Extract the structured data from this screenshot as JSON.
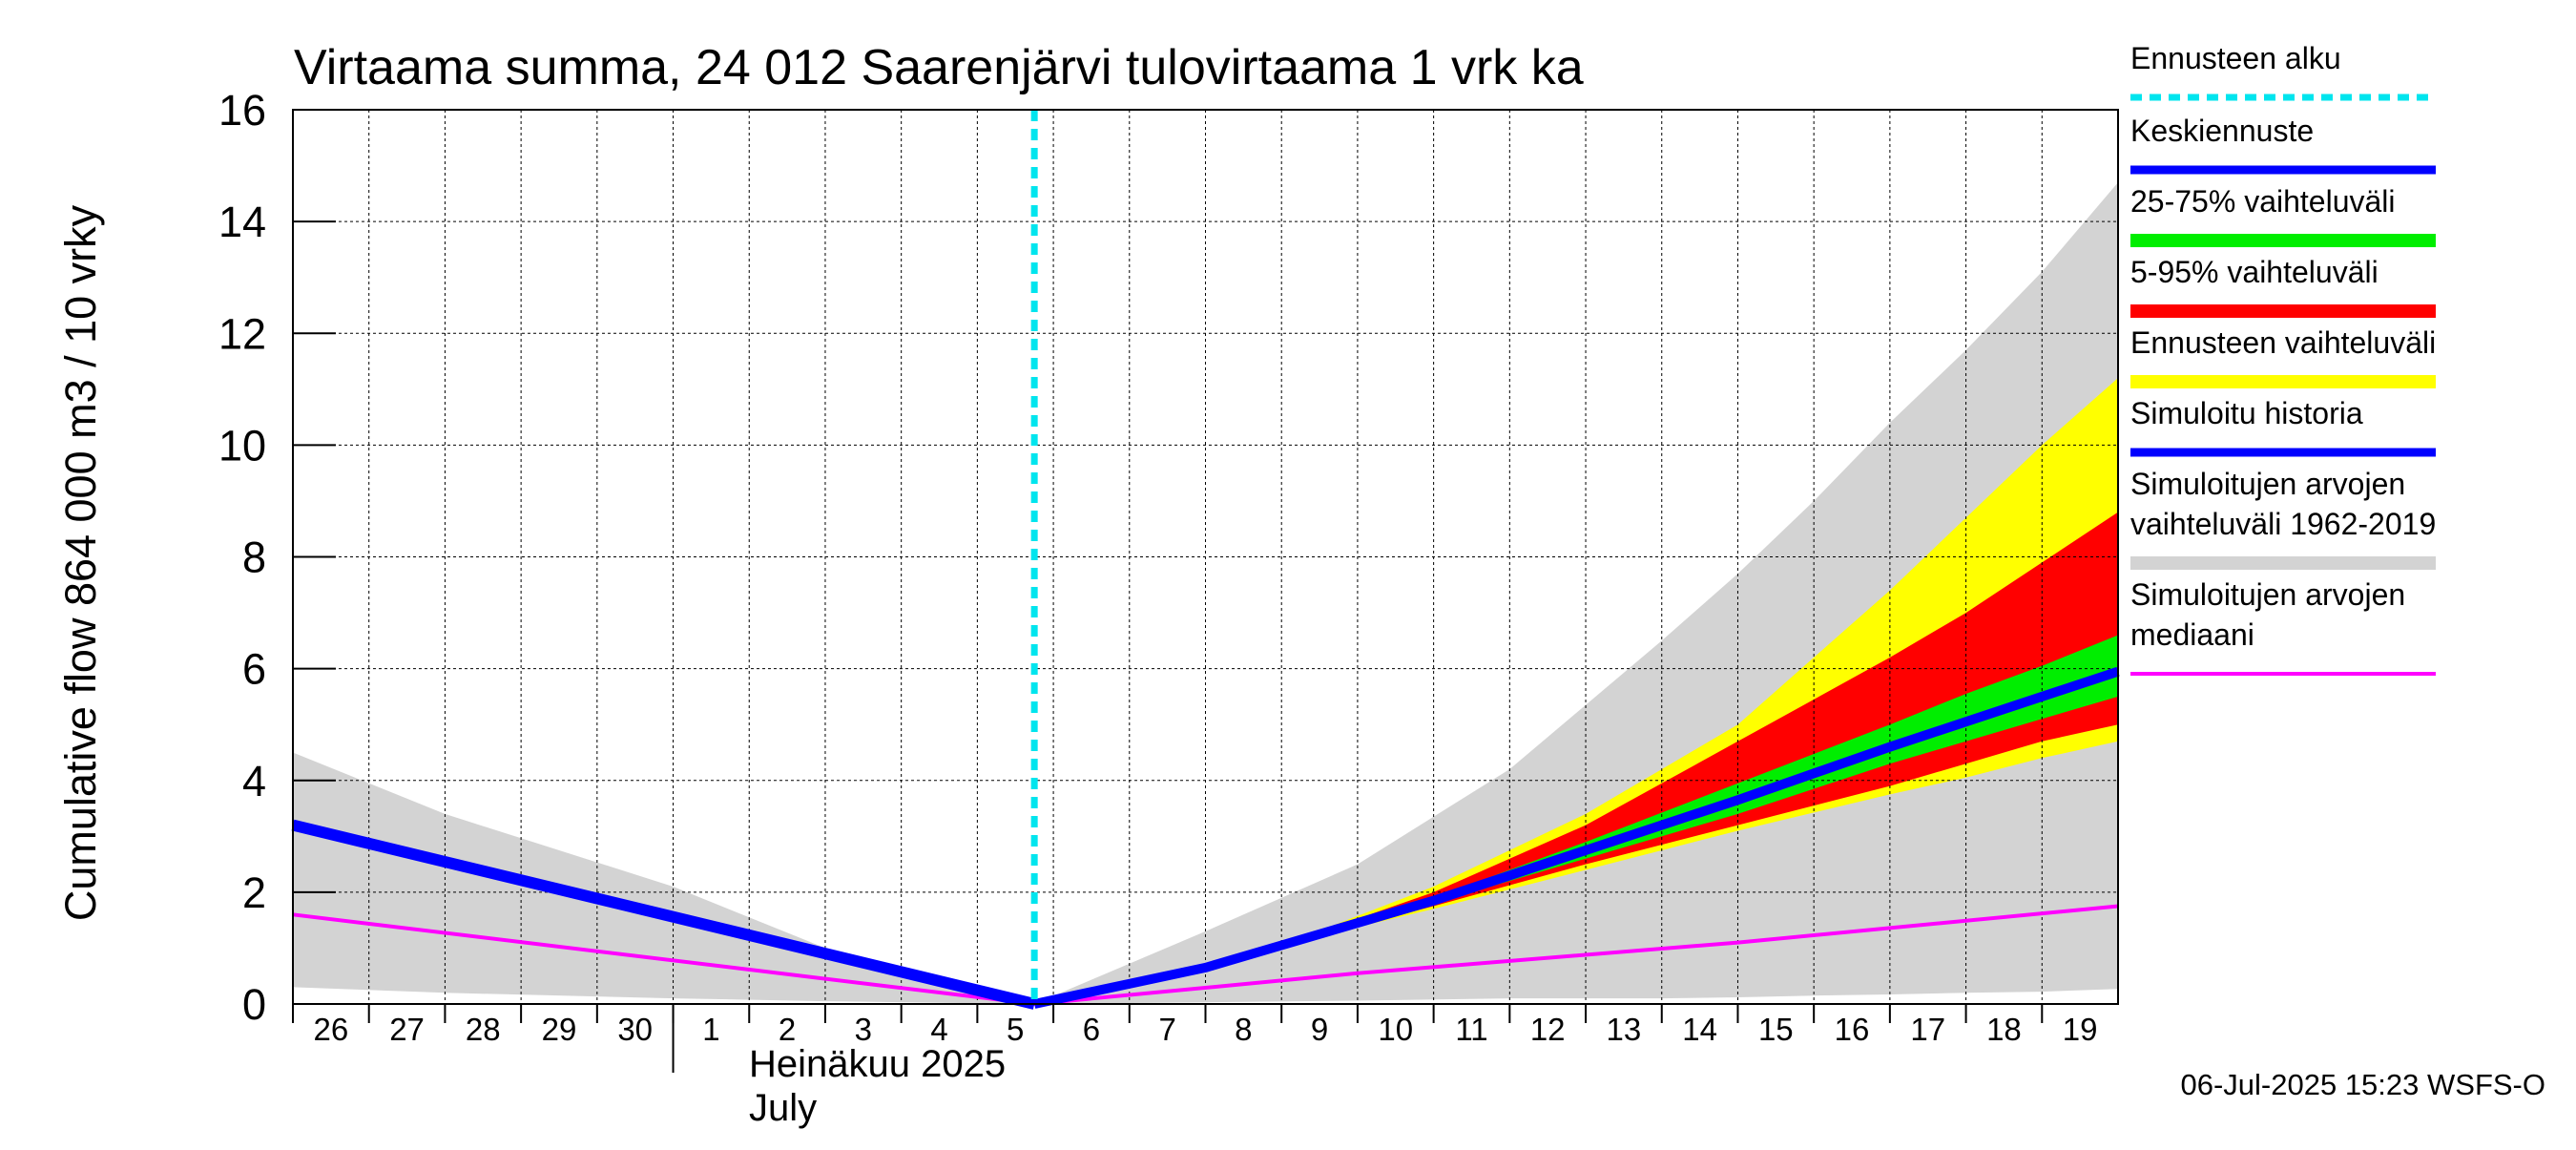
{
  "chart_data": {
    "type": "area",
    "title": "Virtaama summa, 24 012 Saarenjärvi tulovirtaama 1 vrk ka",
    "ylabel": "Cumulative flow    864 000 m3 / 10 vrky",
    "ylim": [
      0,
      16
    ],
    "yticks": [
      0,
      2,
      4,
      6,
      8,
      10,
      12,
      14,
      16
    ],
    "x_days": [
      "26",
      "27",
      "28",
      "29",
      "30",
      "1",
      "2",
      "3",
      "4",
      "5",
      "6",
      "7",
      "8",
      "9",
      "10",
      "11",
      "12",
      "13",
      "14",
      "15",
      "16",
      "17",
      "18",
      "19"
    ],
    "month_label_fi": "Heinäkuu  2025",
    "month_label_en": "July",
    "forecast_start": "2025-07-05 18:00",
    "footer": "06-Jul-2025 15:23 WSFS-O",
    "grid": true,
    "legend_position": "right",
    "legend": [
      {
        "key": "forecast_start",
        "label": "Ennusteen alku",
        "color": "#00e5ee",
        "style": "dashed"
      },
      {
        "key": "mean_forecast",
        "label": "Keskiennuste",
        "color": "#0000ff",
        "style": "line"
      },
      {
        "key": "band_25_75",
        "label": "25-75% vaihteluväli",
        "color": "#00ee00",
        "style": "band"
      },
      {
        "key": "band_5_95",
        "label": "5-95% vaihteluväli",
        "color": "#ff0000",
        "style": "band"
      },
      {
        "key": "forecast_range",
        "label": "Ennusteen vaihteluväli",
        "color": "#ffff00",
        "style": "band"
      },
      {
        "key": "simulated_history",
        "label": "Simuloitu historia",
        "color": "#0000ff",
        "style": "line"
      },
      {
        "key": "historical_range",
        "label": "Simuloitujen arvojen\nvaihteluväli 1962-2019",
        "color": "#d3d3d3",
        "style": "band"
      },
      {
        "key": "historical_median",
        "label": "Simuloitujen arvojen\nmediaani",
        "color": "#ff00ff",
        "style": "line"
      }
    ],
    "series": {
      "historical_range": {
        "x": [
          "2025-06-26",
          "2025-06-28",
          "2025-07-01",
          "2025-07-03",
          "2025-07-05 18:00",
          "2025-07-08",
          "2025-07-10",
          "2025-07-12",
          "2025-07-14",
          "2025-07-15",
          "2025-07-16",
          "2025-07-17",
          "2025-07-18",
          "2025-07-19",
          "2025-07-20"
        ],
        "upper": [
          4.5,
          3.4,
          2.1,
          1.0,
          0.0,
          1.3,
          2.5,
          4.2,
          6.5,
          7.7,
          9.0,
          10.4,
          11.7,
          13.1,
          14.7
        ],
        "lower": [
          0.3,
          0.2,
          0.1,
          0.05,
          0.0,
          0.03,
          0.06,
          0.1,
          0.1,
          0.12,
          0.15,
          0.17,
          0.2,
          0.22,
          0.27
        ]
      },
      "forecast_range": {
        "x": [
          "2025-07-05 18:00",
          "2025-07-08",
          "2025-07-09",
          "2025-07-11",
          "2025-07-13",
          "2025-07-15",
          "2025-07-17",
          "2025-07-18",
          "2025-07-19",
          "2025-07-20"
        ],
        "upper": [
          0.0,
          0.65,
          1.05,
          2.1,
          3.4,
          5.0,
          7.4,
          8.7,
          10.0,
          11.2
        ],
        "lower": [
          0.0,
          0.65,
          1.05,
          1.7,
          2.4,
          3.1,
          3.75,
          4.05,
          4.4,
          4.7
        ]
      },
      "band_5_95": {
        "x": [
          "2025-07-05 18:00",
          "2025-07-08",
          "2025-07-09",
          "2025-07-11",
          "2025-07-13",
          "2025-07-15",
          "2025-07-17",
          "2025-07-18",
          "2025-07-19",
          "2025-07-20"
        ],
        "upper": [
          0.0,
          0.65,
          1.05,
          2.0,
          3.2,
          4.7,
          6.2,
          7.0,
          7.9,
          8.8
        ],
        "lower": [
          0.0,
          0.65,
          1.05,
          1.75,
          2.5,
          3.2,
          3.9,
          4.3,
          4.7,
          5.0
        ]
      },
      "band_25_75": {
        "x": [
          "2025-07-05 18:00",
          "2025-07-08",
          "2025-07-09",
          "2025-07-11",
          "2025-07-13",
          "2025-07-15",
          "2025-07-17",
          "2025-07-18",
          "2025-07-19",
          "2025-07-20"
        ],
        "upper": [
          0.0,
          0.65,
          1.05,
          1.9,
          2.9,
          3.95,
          5.0,
          5.55,
          6.05,
          6.6
        ],
        "lower": [
          0.0,
          0.65,
          1.05,
          1.8,
          2.6,
          3.4,
          4.3,
          4.7,
          5.1,
          5.5
        ]
      },
      "mean_forecast": {
        "x": [
          "2025-07-05 18:00",
          "2025-07-08",
          "2025-07-09",
          "2025-07-11",
          "2025-07-13",
          "2025-07-15",
          "2025-07-17",
          "2025-07-18",
          "2025-07-19",
          "2025-07-20"
        ],
        "y": [
          0.0,
          0.65,
          1.05,
          1.85,
          2.75,
          3.65,
          4.6,
          5.05,
          5.5,
          5.95
        ]
      },
      "simulated_history": {
        "x": [
          "2025-06-26",
          "2025-07-05 18:00"
        ],
        "y": [
          3.2,
          0.0
        ]
      },
      "historical_median": {
        "x": [
          "2025-06-26",
          "2025-07-05 18:00",
          "2025-07-10",
          "2025-07-15",
          "2025-07-20"
        ],
        "y": [
          1.6,
          0.0,
          0.55,
          1.1,
          1.75
        ]
      }
    }
  }
}
